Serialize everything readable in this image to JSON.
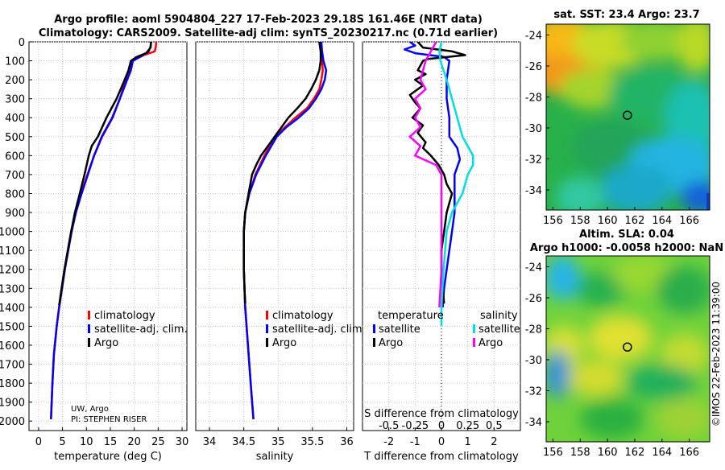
{
  "header": {
    "title_line1": "Argo profile: aoml 5904804_227 17-Feb-2023 29.18S 161.46E (NRT data)",
    "title_line2": "Climatology: CARS2009. Satellite-adj clim: synTS_20230217.nc (0.71d earlier)"
  },
  "credit": {
    "line1": "UW, Argo",
    "line2": "PI: STEPHEN RISER"
  },
  "watermark": "©IMOS 22-Feb-2023 11:39:00",
  "colors": {
    "climatology": "#ff0000",
    "satellite": "#0000ff",
    "argo": "#000000",
    "sat_salinity": "#00e0e0",
    "argo_salinity": "#ff00ff"
  },
  "chart_data": [
    {
      "type": "line",
      "id": "temperature",
      "xlabel": "temperature (deg C)",
      "ylabel": "",
      "xlim": [
        -2,
        31
      ],
      "ylim": [
        2050,
        0
      ],
      "x_ticks": [
        0,
        5,
        10,
        15,
        20,
        25,
        30
      ],
      "y_ticks": [
        0,
        100,
        200,
        300,
        400,
        500,
        600,
        700,
        800,
        900,
        1000,
        1100,
        1200,
        1300,
        1400,
        1500,
        1600,
        1700,
        1800,
        1900,
        2000
      ],
      "legend": [
        "climatology",
        "satellite-adj. clim.",
        "Argo"
      ],
      "series": [
        {
          "name": "climatology",
          "color": "#ff0000",
          "points": [
            [
              24.6,
              0
            ],
            [
              24.5,
              25
            ],
            [
              24.3,
              50
            ],
            [
              22,
              70
            ],
            [
              19.6,
              100
            ],
            [
              19,
              150
            ],
            [
              18.2,
              200
            ],
            [
              17,
              300
            ],
            [
              15.5,
              400
            ],
            [
              13.3,
              500
            ],
            [
              11.6,
              600
            ],
            [
              10.2,
              700
            ],
            [
              8.9,
              800
            ],
            [
              7.8,
              900
            ],
            [
              6.9,
              1000
            ],
            [
              6.2,
              1100
            ],
            [
              5.5,
              1200
            ],
            [
              4.9,
              1300
            ],
            [
              4.3,
              1400
            ],
            [
              3.8,
              1500
            ],
            [
              3.2,
              1650
            ],
            [
              2.9,
              1800
            ],
            [
              2.6,
              1990
            ]
          ]
        },
        {
          "name": "satellite-adj. clim.",
          "color": "#0000ff",
          "points": [
            [
              23.5,
              0
            ],
            [
              23.4,
              25
            ],
            [
              23,
              50
            ],
            [
              21.5,
              75
            ],
            [
              19.7,
              100
            ],
            [
              19.3,
              150
            ],
            [
              18.5,
              200
            ],
            [
              17,
              300
            ],
            [
              15.4,
              400
            ],
            [
              13.2,
              500
            ],
            [
              11.6,
              600
            ],
            [
              10.3,
              700
            ],
            [
              9,
              800
            ],
            [
              7.8,
              900
            ],
            [
              6.9,
              1000
            ],
            [
              6.2,
              1100
            ],
            [
              5.5,
              1200
            ],
            [
              4.9,
              1300
            ],
            [
              4.3,
              1400
            ],
            [
              3.8,
              1500
            ],
            [
              3.2,
              1650
            ],
            [
              2.9,
              1800
            ],
            [
              2.6,
              1990
            ]
          ]
        },
        {
          "name": "Argo",
          "color": "#000000",
          "points": [
            [
              23.5,
              0
            ],
            [
              23.4,
              30
            ],
            [
              22.5,
              60
            ],
            [
              20.5,
              80
            ],
            [
              19.3,
              100
            ],
            [
              18.8,
              150
            ],
            [
              18,
              200
            ],
            [
              16.3,
              300
            ],
            [
              14.2,
              400
            ],
            [
              12.4,
              500
            ],
            [
              11.1,
              550
            ],
            [
              10.5,
              600
            ],
            [
              9.6,
              700
            ],
            [
              8.6,
              800
            ],
            [
              7.6,
              900
            ],
            [
              6.8,
              1000
            ],
            [
              6.1,
              1100
            ],
            [
              5.4,
              1200
            ],
            [
              4.8,
              1300
            ],
            [
              4.3,
              1390
            ]
          ]
        }
      ]
    },
    {
      "type": "line",
      "id": "salinity",
      "xlabel": "salinity",
      "xlim": [
        33.8,
        36.1
      ],
      "ylim": [
        2050,
        0
      ],
      "x_ticks": [
        34,
        34.5,
        35,
        35.5,
        36
      ],
      "series": [
        {
          "name": "climatology",
          "color": "#ff0000",
          "points": [
            [
              35.6,
              0
            ],
            [
              35.62,
              50
            ],
            [
              35.64,
              100
            ],
            [
              35.65,
              150
            ],
            [
              35.63,
              200
            ],
            [
              35.6,
              250
            ],
            [
              35.52,
              300
            ],
            [
              35.42,
              350
            ],
            [
              35.25,
              400
            ],
            [
              35.1,
              450
            ],
            [
              34.95,
              500
            ],
            [
              34.8,
              600
            ],
            [
              34.67,
              700
            ],
            [
              34.58,
              800
            ],
            [
              34.52,
              900
            ],
            [
              34.5,
              1000
            ],
            [
              34.5,
              1200
            ],
            [
              34.52,
              1400
            ],
            [
              34.56,
              1600
            ],
            [
              34.6,
              1800
            ],
            [
              34.64,
              1990
            ]
          ]
        },
        {
          "name": "satellite-adj. clim.",
          "color": "#0000ff",
          "points": [
            [
              35.63,
              0
            ],
            [
              35.64,
              50
            ],
            [
              35.66,
              100
            ],
            [
              35.7,
              150
            ],
            [
              35.68,
              200
            ],
            [
              35.63,
              250
            ],
            [
              35.55,
              300
            ],
            [
              35.45,
              350
            ],
            [
              35.3,
              400
            ],
            [
              35.12,
              450
            ],
            [
              34.98,
              500
            ],
            [
              34.82,
              600
            ],
            [
              34.68,
              700
            ],
            [
              34.58,
              800
            ],
            [
              34.52,
              900
            ],
            [
              34.5,
              1000
            ],
            [
              34.5,
              1200
            ],
            [
              34.52,
              1400
            ],
            [
              34.56,
              1600
            ],
            [
              34.6,
              1800
            ],
            [
              34.64,
              1990
            ]
          ]
        },
        {
          "name": "Argo",
          "color": "#000000",
          "points": [
            [
              35.6,
              0
            ],
            [
              35.62,
              50
            ],
            [
              35.62,
              100
            ],
            [
              35.6,
              150
            ],
            [
              35.55,
              200
            ],
            [
              35.48,
              250
            ],
            [
              35.4,
              300
            ],
            [
              35.28,
              350
            ],
            [
              35.15,
              400
            ],
            [
              35.05,
              450
            ],
            [
              34.95,
              500
            ],
            [
              34.85,
              550
            ],
            [
              34.75,
              600
            ],
            [
              34.68,
              650
            ],
            [
              34.62,
              700
            ],
            [
              34.57,
              800
            ],
            [
              34.52,
              900
            ],
            [
              34.5,
              1000
            ],
            [
              34.5,
              1100
            ],
            [
              34.5,
              1200
            ],
            [
              34.51,
              1300
            ],
            [
              34.52,
              1380
            ]
          ]
        }
      ]
    },
    {
      "type": "line",
      "id": "difference",
      "xlabel": "T difference from climatology",
      "xlabel_top": "S difference from climatology",
      "xlim": [
        -3,
        3
      ],
      "ylim": [
        2050,
        0
      ],
      "x_ticks_T": [
        -2,
        -1,
        0,
        1,
        2
      ],
      "x_ticks_S": [
        -0.5,
        -0.25,
        0,
        0.25,
        0.5
      ],
      "legend_temperature_title": "temperature",
      "legend_salinity_title": "salinity",
      "legend_temperature": [
        "satellite",
        "Argo"
      ],
      "legend_salinity": [
        "satellite",
        "Argo"
      ],
      "series": [
        {
          "name": "T satellite",
          "color": "#0000ff",
          "points": [
            [
              -1.2,
              0
            ],
            [
              -1,
              20
            ],
            [
              -1.4,
              40
            ],
            [
              -1,
              60
            ],
            [
              0.1,
              80
            ],
            [
              0.3,
              100
            ],
            [
              0.2,
              200
            ],
            [
              0.2,
              300
            ],
            [
              0.3,
              400
            ],
            [
              0.3,
              500
            ],
            [
              0.6,
              560
            ],
            [
              0.7,
              620
            ],
            [
              0.5,
              700
            ],
            [
              0.5,
              800
            ],
            [
              0.5,
              900
            ],
            [
              0.4,
              1000
            ],
            [
              0.3,
              1100
            ],
            [
              0.2,
              1200
            ],
            [
              0.1,
              1300
            ],
            [
              0.05,
              1400
            ]
          ]
        },
        {
          "name": "T Argo",
          "color": "#000000",
          "points": [
            [
              -0.9,
              0
            ],
            [
              -0.7,
              30
            ],
            [
              0.4,
              50
            ],
            [
              0.9,
              70
            ],
            [
              -0.5,
              90
            ],
            [
              -0.7,
              100
            ],
            [
              -0.9,
              150
            ],
            [
              -0.6,
              170
            ],
            [
              -1,
              200
            ],
            [
              -0.7,
              230
            ],
            [
              -1.2,
              280
            ],
            [
              -1,
              320
            ],
            [
              -0.8,
              350
            ],
            [
              -1.1,
              400
            ],
            [
              -0.7,
              440
            ],
            [
              -0.9,
              480
            ],
            [
              -0.6,
              530
            ],
            [
              -0.7,
              560
            ],
            [
              -0.4,
              600
            ],
            [
              -0.1,
              650
            ],
            [
              0.1,
              700
            ],
            [
              0.2,
              750
            ],
            [
              0.4,
              800
            ],
            [
              0.2,
              900
            ],
            [
              0.1,
              1000
            ],
            [
              0,
              1100
            ],
            [
              0,
              1200
            ],
            [
              0.05,
              1300
            ],
            [
              0.1,
              1380
            ]
          ]
        },
        {
          "name": "S satellite",
          "color": "#00e0e0",
          "points": [
            [
              0,
              0
            ],
            [
              -0.02,
              50
            ],
            [
              -0.01,
              100
            ],
            [
              0.05,
              200
            ],
            [
              0.1,
              300
            ],
            [
              0.15,
              400
            ],
            [
              0.2,
              500
            ],
            [
              0.25,
              550
            ],
            [
              0.3,
              600
            ],
            [
              0.3,
              650
            ],
            [
              0.25,
              700
            ],
            [
              0.2,
              800
            ],
            [
              0.1,
              900
            ],
            [
              0.05,
              1000
            ],
            [
              0.02,
              1200
            ],
            [
              0,
              1400
            ],
            [
              0,
              1500
            ]
          ]
        },
        {
          "name": "S Argo",
          "color": "#ff00ff",
          "points": [
            [
              -0.05,
              0
            ],
            [
              -0.1,
              50
            ],
            [
              -0.15,
              100
            ],
            [
              -0.2,
              200
            ],
            [
              -0.15,
              250
            ],
            [
              -0.25,
              300
            ],
            [
              -0.2,
              350
            ],
            [
              -0.25,
              400
            ],
            [
              -0.2,
              450
            ],
            [
              -0.3,
              500
            ],
            [
              -0.2,
              550
            ],
            [
              -0.25,
              600
            ],
            [
              -0.05,
              650
            ],
            [
              0,
              700
            ],
            [
              0,
              800
            ],
            [
              0,
              900
            ],
            [
              0,
              1000
            ],
            [
              0,
              1200
            ],
            [
              -0.02,
              1400
            ]
          ]
        }
      ]
    },
    {
      "type": "heatmap",
      "id": "sst_map",
      "title": "sat. SST: 23.4 Argo: 23.7",
      "xlim": [
        155.5,
        167.5
      ],
      "ylim": [
        -35.3,
        -23.3
      ],
      "x_ticks": [
        156,
        158,
        160,
        162,
        164,
        166
      ],
      "y_ticks": [
        -24,
        -26,
        -28,
        -30,
        -32,
        -34
      ],
      "float_position": [
        161.46,
        -29.18
      ]
    },
    {
      "type": "heatmap",
      "id": "sla_map",
      "title_line1": "Altim. SLA: 0.04",
      "title_line2": "Argo h1000: -0.0058 h2000: NaN",
      "xlim": [
        155.5,
        167.5
      ],
      "ylim": [
        -35.3,
        -23.3
      ],
      "x_ticks": [
        156,
        158,
        160,
        162,
        164,
        166
      ],
      "y_ticks": [
        -24,
        -26,
        -28,
        -30,
        -32,
        -34
      ],
      "float_position": [
        161.46,
        -29.18
      ]
    }
  ]
}
